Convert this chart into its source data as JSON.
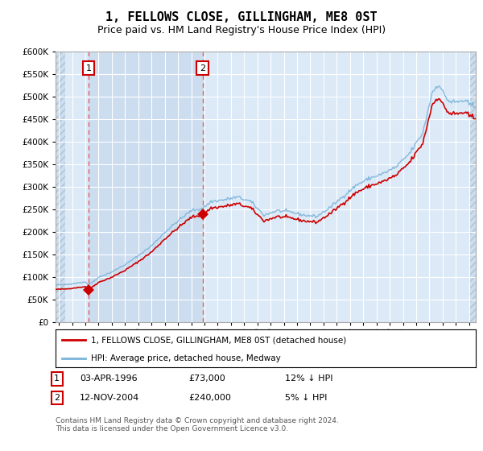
{
  "title": "1, FELLOWS CLOSE, GILLINGHAM, ME8 0ST",
  "subtitle": "Price paid vs. HM Land Registry's House Price Index (HPI)",
  "ylim": [
    0,
    600000
  ],
  "yticks": [
    0,
    50000,
    100000,
    150000,
    200000,
    250000,
    300000,
    350000,
    400000,
    450000,
    500000,
    550000,
    600000
  ],
  "xlim_start": 1993.75,
  "xlim_end": 2025.5,
  "background_color": "#ffffff",
  "plot_bg_color": "#dce9f7",
  "grid_color": "#ffffff",
  "hpi_line_color": "#7ab3d9",
  "price_line_color": "#cc0000",
  "sale1_x": 1996.25,
  "sale1_y": 73000,
  "sale2_x": 2004.87,
  "sale2_y": 240000,
  "vline_color": "#e06060",
  "between_shade_color": "#ccddf0",
  "legend_label1": "1, FELLOWS CLOSE, GILLINGHAM, ME8 0ST (detached house)",
  "legend_label2": "HPI: Average price, detached house, Medway",
  "note1_num": "1",
  "note1_date": "03-APR-1996",
  "note1_price": "£73,000",
  "note1_hpi": "12% ↓ HPI",
  "note2_num": "2",
  "note2_date": "12-NOV-2004",
  "note2_price": "£240,000",
  "note2_hpi": "5% ↓ HPI",
  "footer": "Contains HM Land Registry data © Crown copyright and database right 2024.\nThis data is licensed under the Open Government Licence v3.0.",
  "title_fontsize": 11,
  "subtitle_fontsize": 9
}
